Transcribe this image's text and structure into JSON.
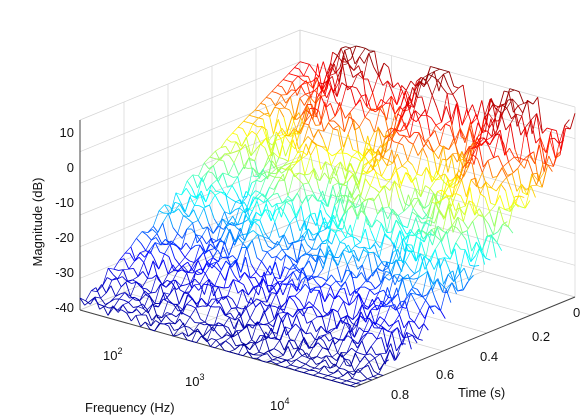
{
  "chart_data": {
    "type": "surface3d",
    "title": "",
    "xlabel": "Frequency (Hz)",
    "ylabel": "Time (s)",
    "zlabel": "Magnitude (dB)",
    "x_scale": "log",
    "x_ticks": [
      {
        "value": 100,
        "base": "10",
        "exp": "2"
      },
      {
        "value": 1000,
        "base": "10",
        "exp": "3"
      },
      {
        "value": 10000,
        "base": "10",
        "exp": "4"
      }
    ],
    "y_ticks": [
      "0",
      "0.2",
      "0.4",
      "0.6",
      "0.8"
    ],
    "z_ticks": [
      "10",
      "0",
      "-10",
      "-20",
      "-30",
      "-40"
    ],
    "xlim": [
      50,
      20000
    ],
    "ylim": [
      0,
      0.9
    ],
    "zlim": [
      -45,
      15
    ],
    "grid": true,
    "colormap": "jet",
    "colormap_stops": [
      "#00008f",
      "#0000ff",
      "#00ffff",
      "#ffff00",
      "#ff0000",
      "#800000"
    ],
    "surface": {
      "description_values": {
        "freq_range_hz": [
          70,
          20000
        ],
        "time_range_s": [
          0,
          0.9
        ],
        "peak_level_db": 12,
        "floor_level_db": -45
      }
    }
  }
}
